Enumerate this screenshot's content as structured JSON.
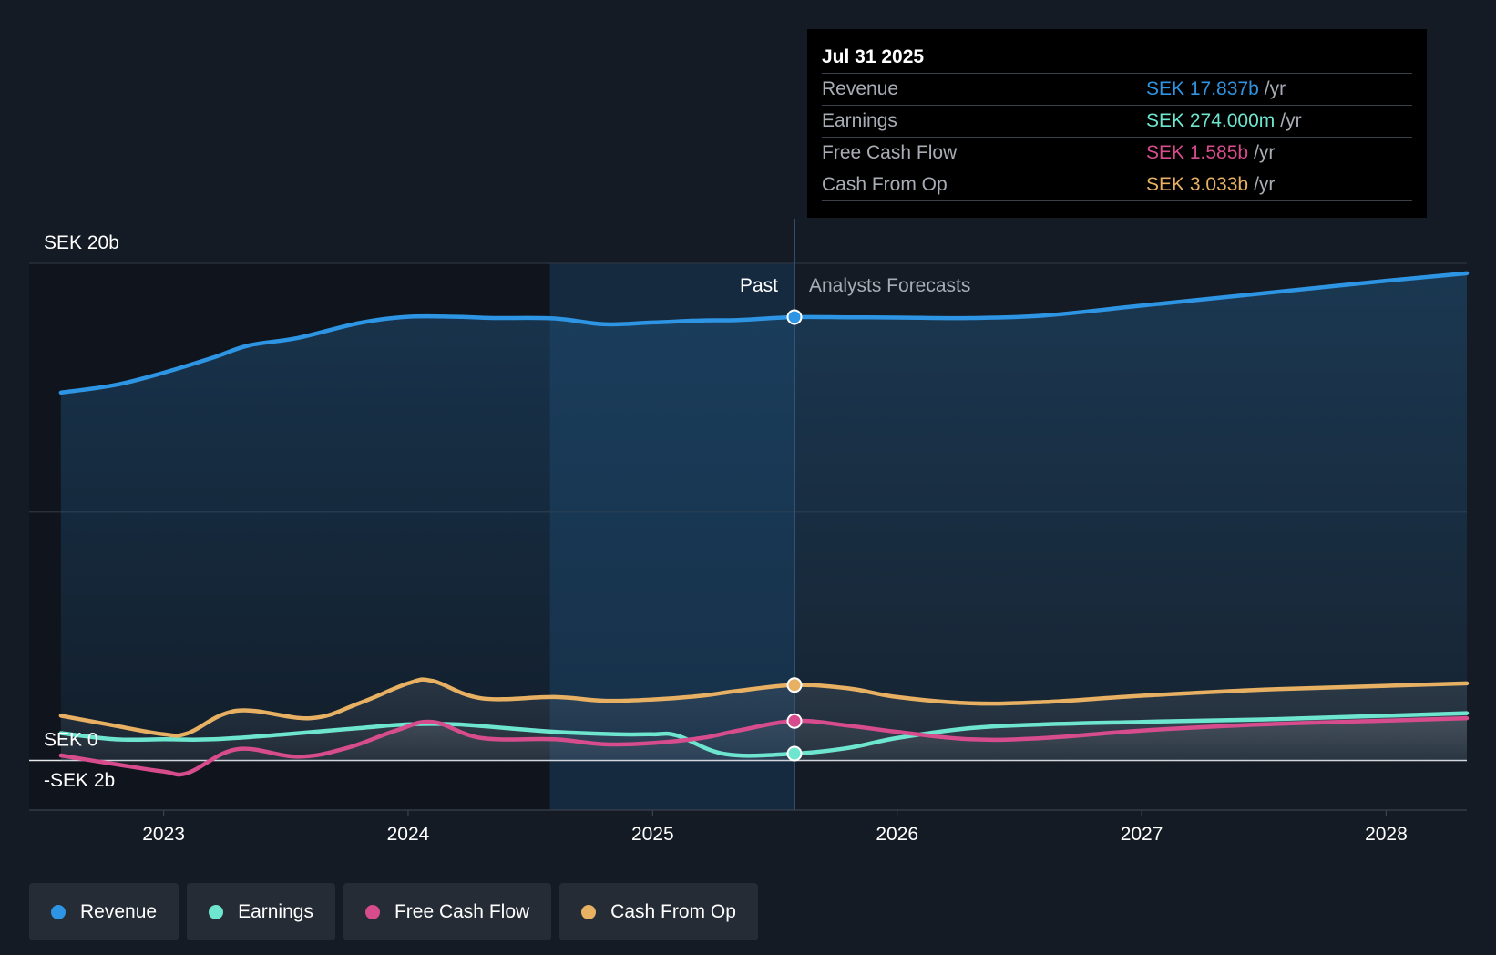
{
  "chart_data": {
    "type": "area",
    "currency": "SEK",
    "y_axis": {
      "ylim": [
        -2,
        20
      ],
      "tick_labels": [
        {
          "value": 20,
          "label": "SEK 20b"
        },
        {
          "value": 0,
          "label": "SEK 0"
        },
        {
          "value": -2,
          "label": "-SEK 2b"
        }
      ],
      "gridlines": [
        20,
        10,
        0
      ]
    },
    "x_axis": {
      "xlim": [
        2022.45,
        2028.33
      ],
      "tick_labels": [
        {
          "value": 2023,
          "label": "2023"
        },
        {
          "value": 2024,
          "label": "2024"
        },
        {
          "value": 2025,
          "label": "2025"
        },
        {
          "value": 2026,
          "label": "2026"
        },
        {
          "value": 2027,
          "label": "2027"
        },
        {
          "value": 2028,
          "label": "2028"
        }
      ]
    },
    "past_label": "Past",
    "forecast_label": "Analysts Forecasts",
    "divider_x": 2025.58,
    "highlight_start_x": 2024.58,
    "series": [
      {
        "name": "Revenue",
        "key": "revenue",
        "color": "#2d95e3",
        "points": [
          [
            2022.58,
            14.8
          ],
          [
            2022.8,
            15.1
          ],
          [
            2023.0,
            15.6
          ],
          [
            2023.2,
            16.2
          ],
          [
            2023.35,
            16.7
          ],
          [
            2023.55,
            17.0
          ],
          [
            2023.8,
            17.6
          ],
          [
            2024.0,
            17.85
          ],
          [
            2024.2,
            17.85
          ],
          [
            2024.35,
            17.8
          ],
          [
            2024.6,
            17.78
          ],
          [
            2024.8,
            17.55
          ],
          [
            2025.0,
            17.62
          ],
          [
            2025.2,
            17.7
          ],
          [
            2025.35,
            17.72
          ],
          [
            2025.58,
            17.837
          ],
          [
            2025.8,
            17.83
          ],
          [
            2026.0,
            17.82
          ],
          [
            2026.3,
            17.8
          ],
          [
            2026.6,
            17.9
          ],
          [
            2027.0,
            18.3
          ],
          [
            2027.5,
            18.8
          ],
          [
            2028.0,
            19.3
          ],
          [
            2028.33,
            19.6
          ]
        ]
      },
      {
        "name": "Earnings",
        "key": "earnings",
        "color": "#6ee6cf",
        "points": [
          [
            2022.58,
            1.1
          ],
          [
            2022.8,
            0.85
          ],
          [
            2023.0,
            0.85
          ],
          [
            2023.2,
            0.85
          ],
          [
            2023.5,
            1.05
          ],
          [
            2023.8,
            1.3
          ],
          [
            2024.0,
            1.45
          ],
          [
            2024.2,
            1.45
          ],
          [
            2024.4,
            1.3
          ],
          [
            2024.6,
            1.15
          ],
          [
            2024.85,
            1.05
          ],
          [
            2025.0,
            1.05
          ],
          [
            2025.1,
            1.0
          ],
          [
            2025.3,
            0.25
          ],
          [
            2025.58,
            0.274
          ],
          [
            2025.8,
            0.5
          ],
          [
            2026.0,
            0.9
          ],
          [
            2026.3,
            1.3
          ],
          [
            2026.6,
            1.45
          ],
          [
            2027.0,
            1.55
          ],
          [
            2027.5,
            1.65
          ],
          [
            2028.0,
            1.8
          ],
          [
            2028.33,
            1.9
          ]
        ]
      },
      {
        "name": "Free Cash Flow",
        "key": "fcf",
        "color": "#d64c8d",
        "points": [
          [
            2022.58,
            0.2
          ],
          [
            2022.8,
            -0.15
          ],
          [
            2023.0,
            -0.45
          ],
          [
            2023.1,
            -0.5
          ],
          [
            2023.3,
            0.45
          ],
          [
            2023.55,
            0.15
          ],
          [
            2023.75,
            0.5
          ],
          [
            2023.95,
            1.2
          ],
          [
            2024.1,
            1.55
          ],
          [
            2024.3,
            0.9
          ],
          [
            2024.6,
            0.85
          ],
          [
            2024.8,
            0.65
          ],
          [
            2025.0,
            0.7
          ],
          [
            2025.2,
            0.9
          ],
          [
            2025.35,
            1.2
          ],
          [
            2025.58,
            1.585
          ],
          [
            2025.8,
            1.4
          ],
          [
            2026.0,
            1.15
          ],
          [
            2026.3,
            0.85
          ],
          [
            2026.6,
            0.9
          ],
          [
            2027.0,
            1.2
          ],
          [
            2027.5,
            1.45
          ],
          [
            2028.0,
            1.6
          ],
          [
            2028.33,
            1.7
          ]
        ]
      },
      {
        "name": "Cash From Op",
        "key": "cfo",
        "color": "#e7b062",
        "points": [
          [
            2022.58,
            1.8
          ],
          [
            2022.8,
            1.4
          ],
          [
            2023.0,
            1.05
          ],
          [
            2023.1,
            1.1
          ],
          [
            2023.3,
            2.0
          ],
          [
            2023.6,
            1.7
          ],
          [
            2023.8,
            2.3
          ],
          [
            2024.0,
            3.1
          ],
          [
            2024.1,
            3.2
          ],
          [
            2024.3,
            2.5
          ],
          [
            2024.6,
            2.55
          ],
          [
            2024.8,
            2.4
          ],
          [
            2025.0,
            2.45
          ],
          [
            2025.2,
            2.6
          ],
          [
            2025.35,
            2.8
          ],
          [
            2025.58,
            3.033
          ],
          [
            2025.8,
            2.9
          ],
          [
            2026.0,
            2.55
          ],
          [
            2026.3,
            2.3
          ],
          [
            2026.6,
            2.35
          ],
          [
            2027.0,
            2.6
          ],
          [
            2027.5,
            2.85
          ],
          [
            2028.0,
            3.0
          ],
          [
            2028.33,
            3.1
          ]
        ]
      }
    ]
  },
  "tooltip": {
    "date": "Jul 31 2025",
    "rows": [
      {
        "name": "Revenue",
        "value": "SEK 17.837b",
        "unit": "/yr",
        "color": "#2d95e3"
      },
      {
        "name": "Earnings",
        "value": "SEK 274.000m",
        "unit": "/yr",
        "color": "#6ee6cf"
      },
      {
        "name": "Free Cash Flow",
        "value": "SEK 1.585b",
        "unit": "/yr",
        "color": "#d64c8d"
      },
      {
        "name": "Cash From Op",
        "value": "SEK 3.033b",
        "unit": "/yr",
        "color": "#e7b062"
      }
    ]
  },
  "legend": [
    {
      "label": "Revenue",
      "color": "#2d95e3"
    },
    {
      "label": "Earnings",
      "color": "#6ee6cf"
    },
    {
      "label": "Free Cash Flow",
      "color": "#d64c8d"
    },
    {
      "label": "Cash From Op",
      "color": "#e7b062"
    }
  ]
}
